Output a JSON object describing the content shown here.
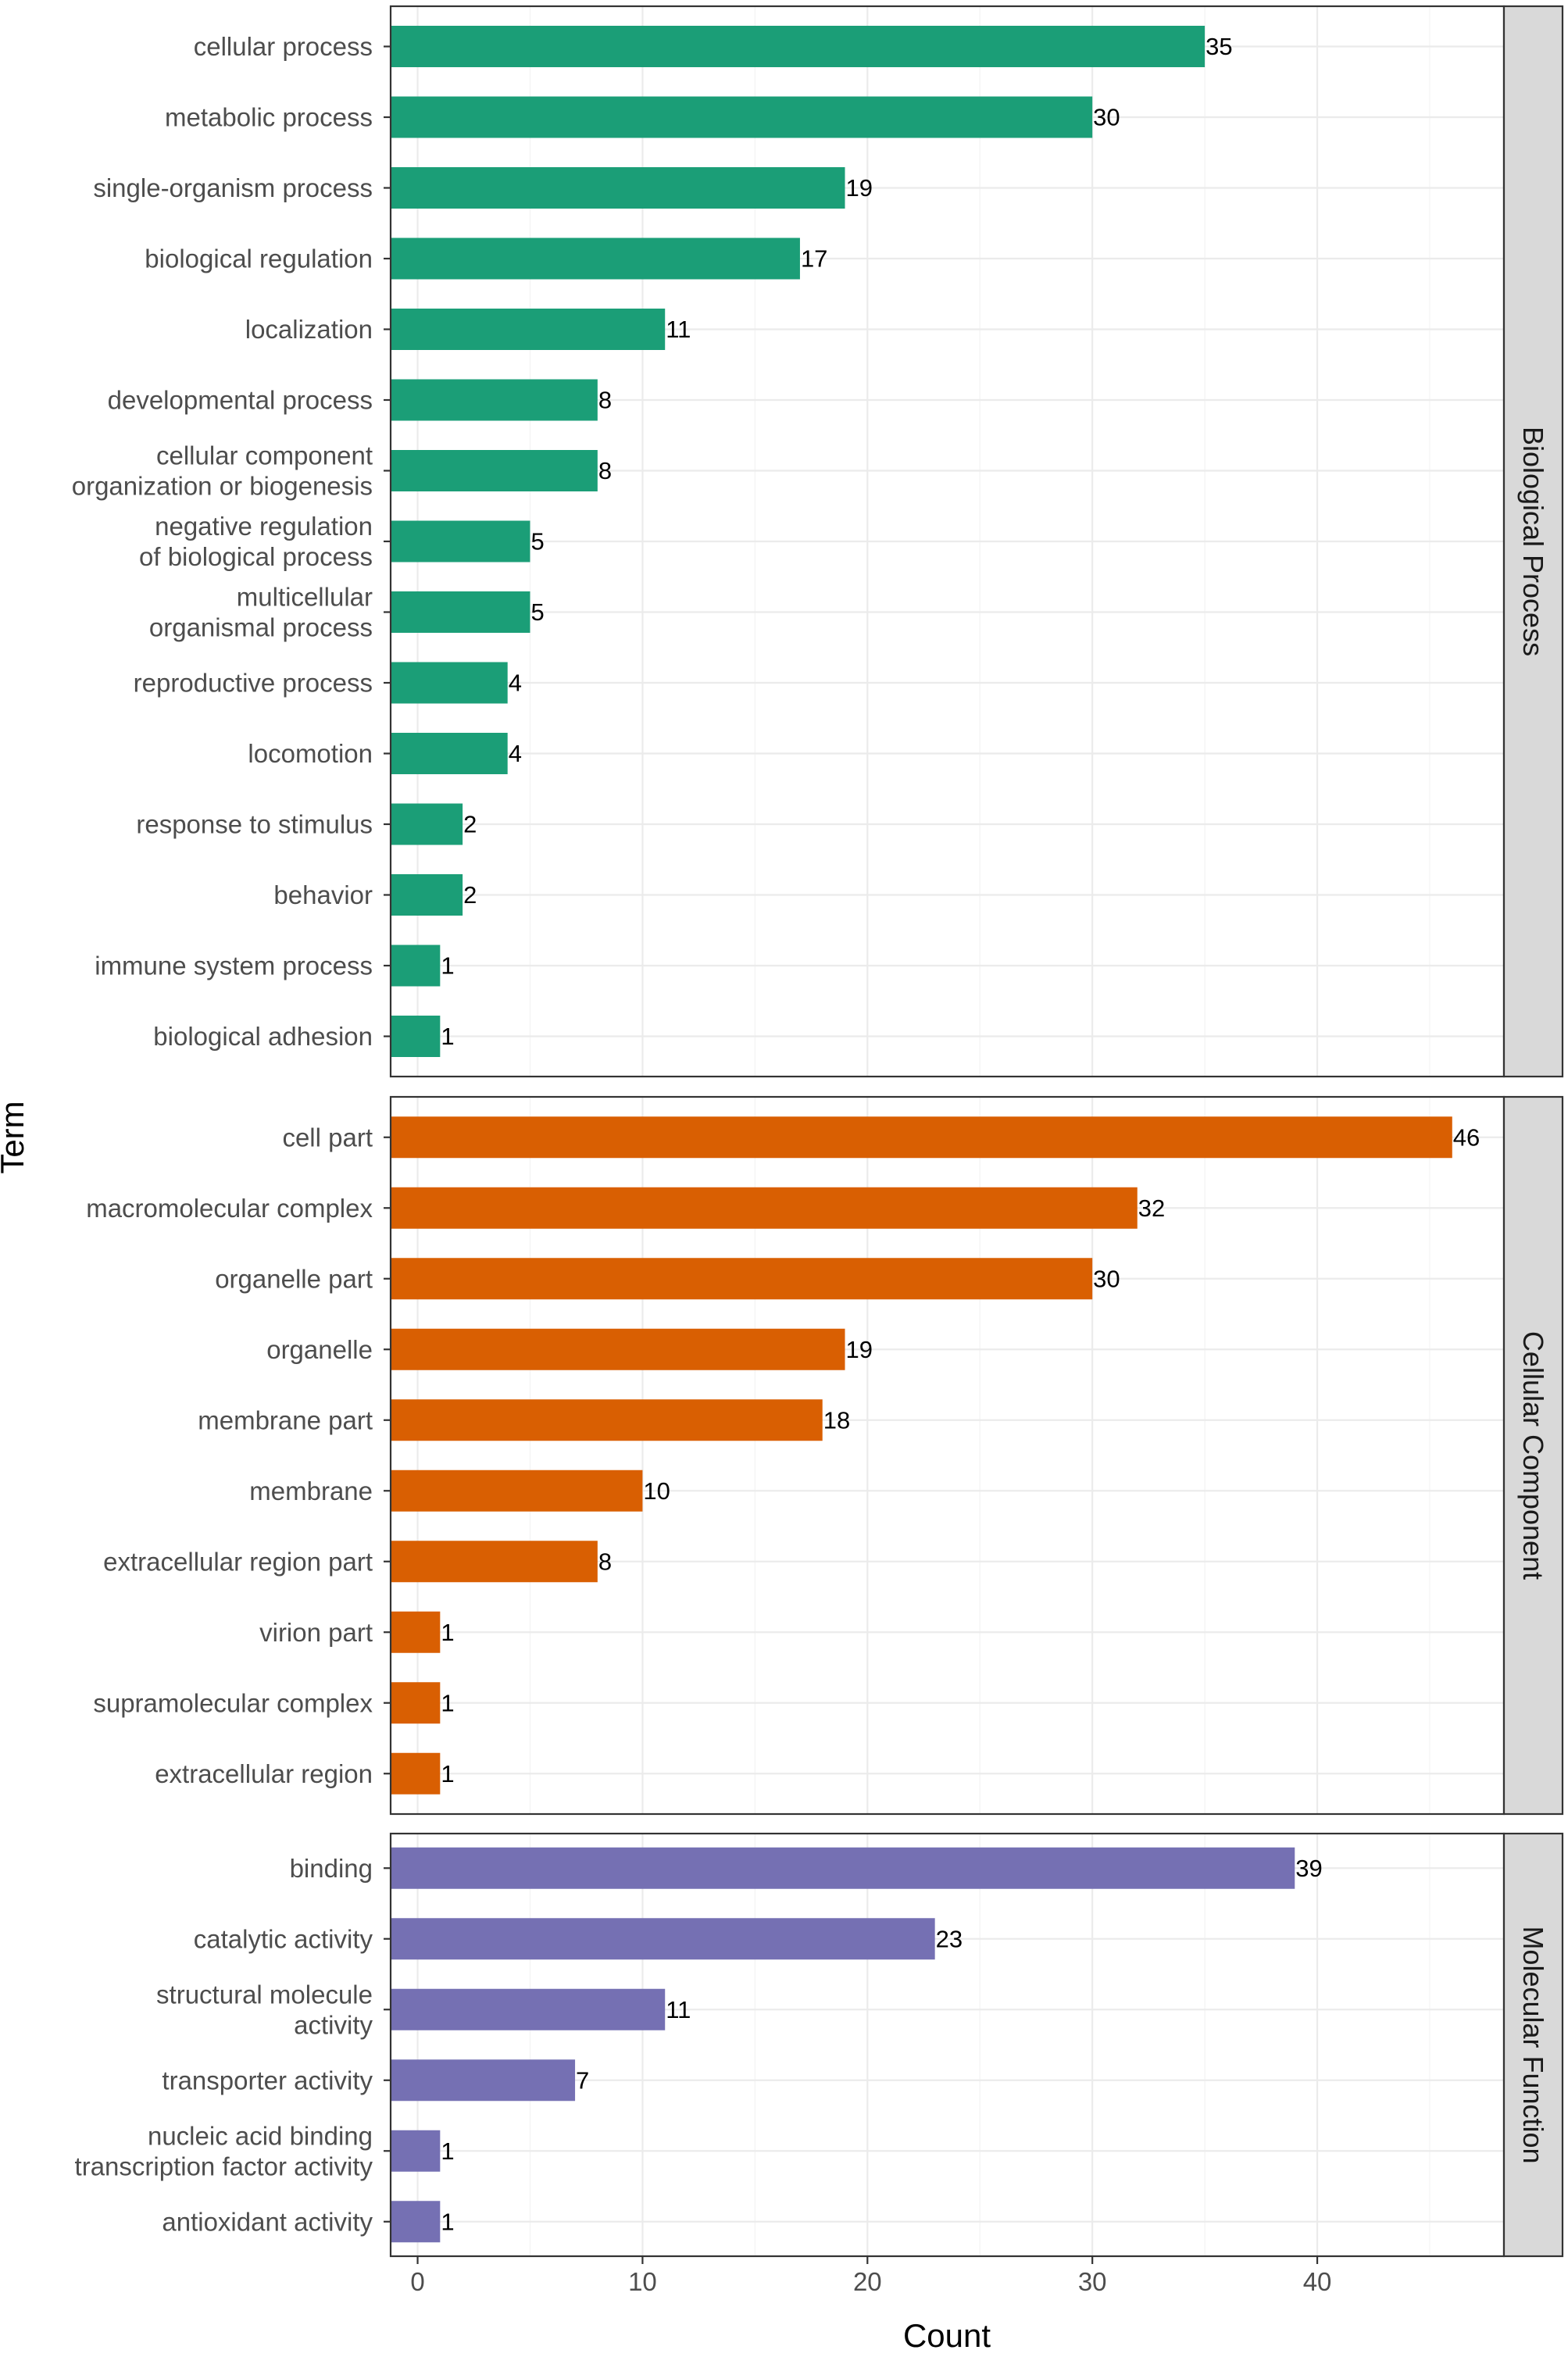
{
  "chart_data": {
    "type": "bar",
    "orientation": "horizontal",
    "xlabel": "Count",
    "ylabel": "Term",
    "xlim": [
      -1.2,
      48.3
    ],
    "xticks": [
      0,
      10,
      20,
      30,
      40
    ],
    "grid": true,
    "panels": [
      {
        "name": "Biological Process",
        "color": "#1b9e77",
        "categories": [
          "cellular process",
          "metabolic process",
          "single-organism process",
          "biological regulation",
          "localization",
          "developmental process",
          "cellular component organization or biogenesis",
          "negative regulation of biological process",
          "multicellular organismal process",
          "reproductive process",
          "locomotion",
          "response to stimulus",
          "behavior",
          "immune system process",
          "biological adhesion"
        ],
        "label_lines": [
          [
            "cellular process"
          ],
          [
            "metabolic process"
          ],
          [
            "single-organism process"
          ],
          [
            "biological regulation"
          ],
          [
            "localization"
          ],
          [
            "developmental process"
          ],
          [
            "cellular component",
            "organization or biogenesis"
          ],
          [
            "negative regulation",
            "of biological process"
          ],
          [
            "multicellular",
            "organismal process"
          ],
          [
            "reproductive process"
          ],
          [
            "locomotion"
          ],
          [
            "response to stimulus"
          ],
          [
            "behavior"
          ],
          [
            "immune system process"
          ],
          [
            "biological adhesion"
          ]
        ],
        "values": [
          35,
          30,
          19,
          17,
          11,
          8,
          8,
          5,
          5,
          4,
          4,
          2,
          2,
          1,
          1
        ]
      },
      {
        "name": "Cellular Component",
        "color": "#d95f02",
        "categories": [
          "cell part",
          "macromolecular complex",
          "organelle part",
          "organelle",
          "membrane part",
          "membrane",
          "extracellular region part",
          "virion part",
          "supramolecular complex",
          "extracellular region"
        ],
        "label_lines": [
          [
            "cell part"
          ],
          [
            "macromolecular complex"
          ],
          [
            "organelle part"
          ],
          [
            "organelle"
          ],
          [
            "membrane part"
          ],
          [
            "membrane"
          ],
          [
            "extracellular region part"
          ],
          [
            "virion part"
          ],
          [
            "supramolecular complex"
          ],
          [
            "extracellular region"
          ]
        ],
        "values": [
          46,
          32,
          30,
          19,
          18,
          10,
          8,
          1,
          1,
          1
        ]
      },
      {
        "name": "Molecular Function",
        "color": "#7570b3",
        "categories": [
          "binding",
          "catalytic activity",
          "structural molecule activity",
          "transporter activity",
          "nucleic acid binding transcription factor activity",
          "antioxidant activity"
        ],
        "label_lines": [
          [
            "binding"
          ],
          [
            "catalytic activity"
          ],
          [
            "structural molecule",
            "activity"
          ],
          [
            "transporter activity"
          ],
          [
            "nucleic acid binding",
            "transcription factor activity"
          ],
          [
            "antioxidant activity"
          ]
        ],
        "values": [
          39,
          23,
          11,
          7,
          1,
          1
        ]
      }
    ]
  }
}
